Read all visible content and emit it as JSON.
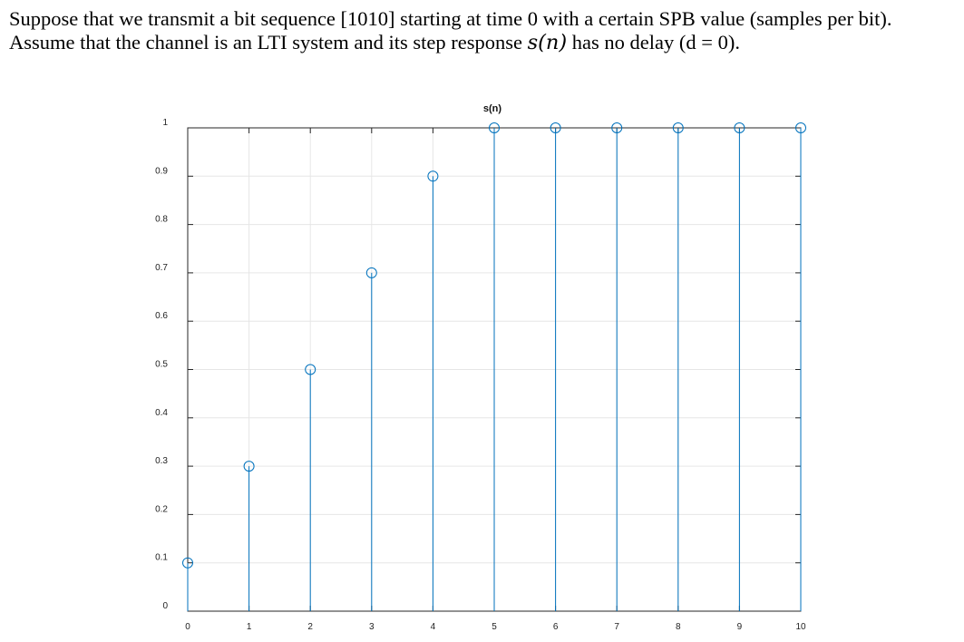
{
  "problem": {
    "line1": "Suppose that we transmit a bit sequence [1010] starting at time 0 with a certain SPB value (samples per bit).",
    "line2_part1": "Assume that the channel is an LTI system and its step response ",
    "line2_math": "s(n)",
    "line2_part2": " has no delay (d = 0)."
  },
  "chart_data": {
    "type": "stem",
    "title": "s(n)",
    "xlabel": "",
    "ylabel": "",
    "x": [
      0,
      1,
      2,
      3,
      4,
      5,
      6,
      7,
      8,
      9,
      10
    ],
    "values": [
      0.1,
      0.3,
      0.5,
      0.7,
      0.9,
      1,
      1,
      1,
      1,
      1,
      1
    ],
    "xlim": [
      0,
      10
    ],
    "ylim": [
      0,
      1
    ],
    "xticks": [
      0,
      1,
      2,
      3,
      4,
      5,
      6,
      7,
      8,
      9,
      10
    ],
    "yticks": [
      0,
      0.1,
      0.2,
      0.3,
      0.4,
      0.5,
      0.6,
      0.7,
      0.8,
      0.9,
      1
    ],
    "xtick_labels": [
      "0",
      "1",
      "2",
      "3",
      "4",
      "5",
      "6",
      "7",
      "8",
      "9",
      "10"
    ],
    "ytick_labels": [
      "0",
      "0.1",
      "0.2",
      "0.3",
      "0.4",
      "0.5",
      "0.6",
      "0.7",
      "0.8",
      "0.9",
      "1"
    ],
    "grid": true,
    "marker": "circle",
    "color": "#0072bd"
  }
}
